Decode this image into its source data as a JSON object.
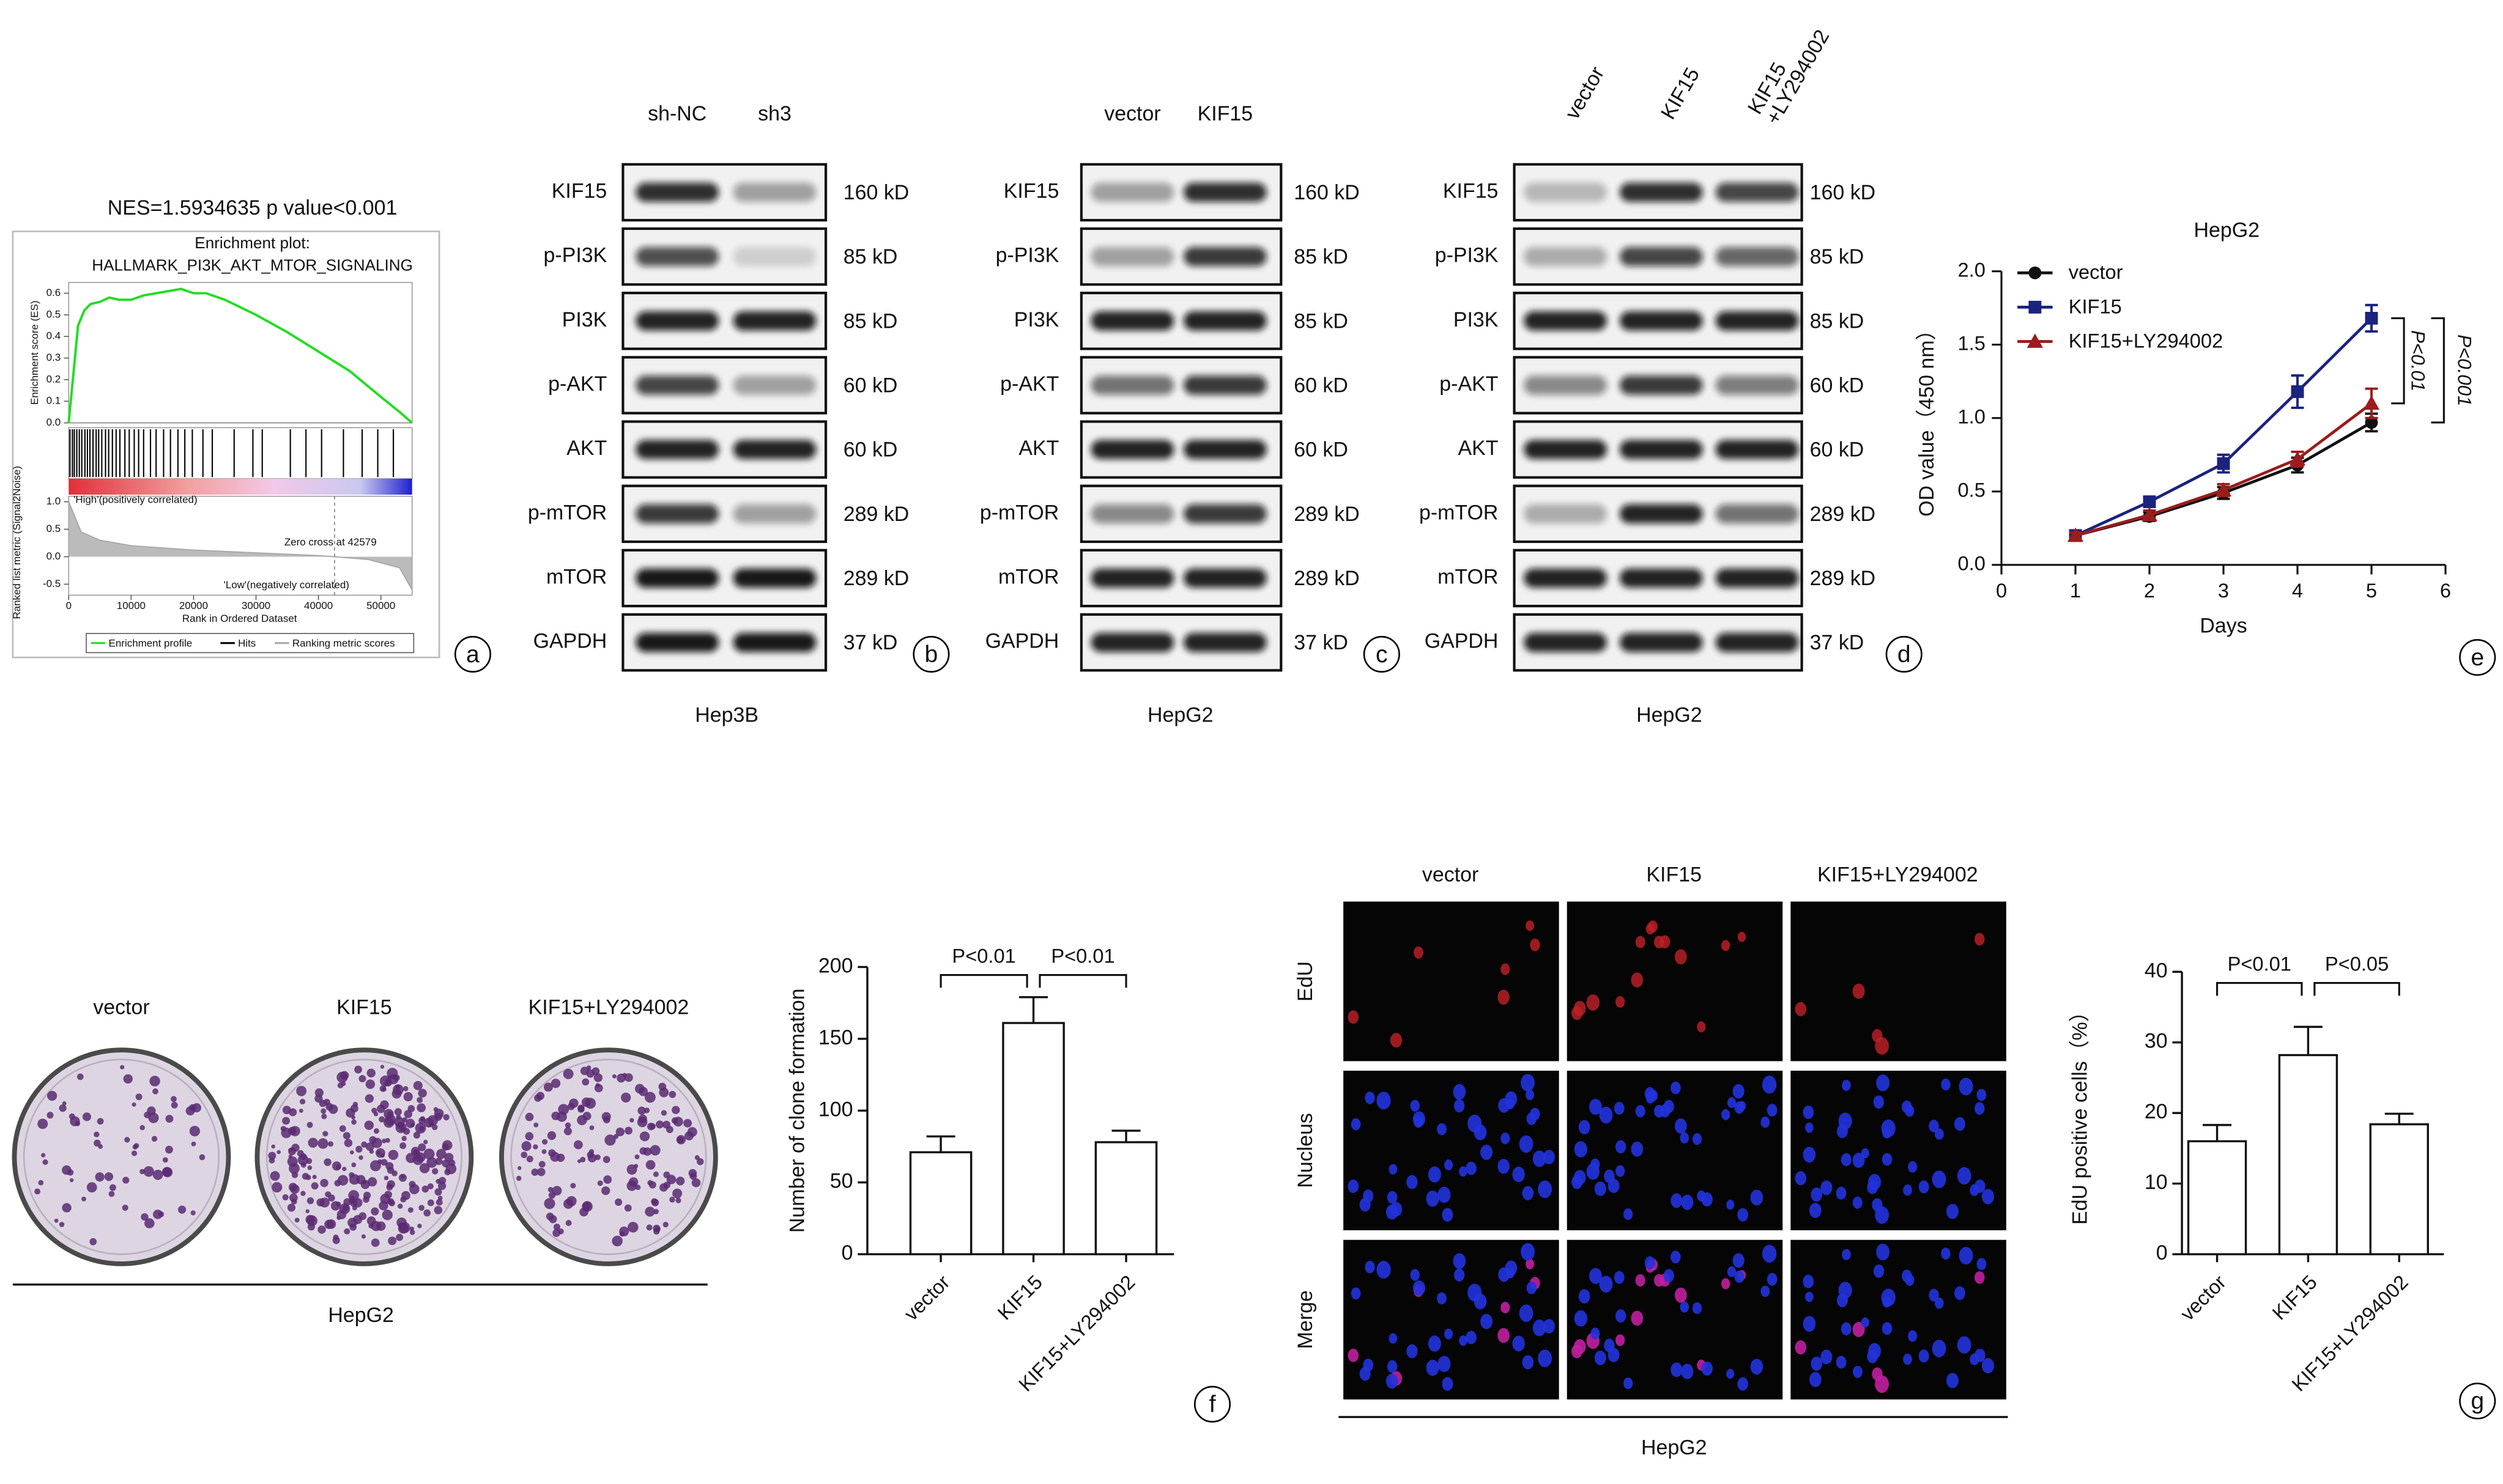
{
  "figure": {
    "panel_labels": [
      "a",
      "b",
      "c",
      "d",
      "e",
      "f",
      "g"
    ]
  },
  "chart_data": [
    {
      "type": "gsea",
      "title": "NES=1.5934635 p value<0.001",
      "subtitle": [
        "Enrichment plot:",
        "HALLMARK_PI3K_AKT_MTOR_SIGNALING"
      ],
      "ylabel": "Enrichment score (ES)",
      "y2label": "Ranked list metric (Signal2Noise)",
      "xlabel": "Rank in Ordered Dataset",
      "xlim": [
        0,
        55000
      ],
      "xticks": [
        0,
        10000,
        20000,
        30000,
        40000,
        50000
      ],
      "ylim": [
        0,
        0.65
      ],
      "yticks": [
        {
          "value": 0,
          "label": "0.0"
        },
        0.1,
        0.2,
        0.3,
        0.4,
        0.5,
        0.6
      ],
      "y2lim": [
        -0.7,
        1.1
      ],
      "y2ticks": [
        {
          "value": 1,
          "label": "1.0"
        },
        0.5,
        {
          "value": 0,
          "label": "0.0"
        },
        -0.5
      ],
      "series": [
        {
          "name": "Enrichment profile",
          "color": "#22dd22",
          "x": [
            0,
            500,
            1000,
            1500,
            2500,
            3500,
            5000,
            6500,
            8000,
            10000,
            12000,
            14000,
            16000,
            18000,
            20000,
            22000,
            25000,
            30000,
            35000,
            40000,
            45000,
            50000,
            53000,
            55000
          ],
          "values": [
            0,
            0.15,
            0.3,
            0.45,
            0.52,
            0.55,
            0.56,
            0.58,
            0.57,
            0.57,
            0.59,
            0.6,
            0.61,
            0.62,
            0.6,
            0.6,
            0.57,
            0.5,
            0.42,
            0.33,
            0.24,
            0.12,
            0.05,
            0
          ]
        },
        {
          "name": "Hits",
          "color": "#000000",
          "x": [
            200,
            600,
            900,
            1300,
            1700,
            2100,
            2600,
            3000,
            3400,
            3900,
            4400,
            4800,
            5300,
            5900,
            6400,
            7000,
            7600,
            8200,
            9000,
            9700,
            10500,
            11200,
            12000,
            13100,
            14000,
            15200,
            16300,
            17500,
            18600,
            19800,
            21500,
            23000,
            26500,
            29500,
            31000,
            35500,
            38000,
            40500,
            44000,
            47000,
            49500,
            52000
          ]
        },
        {
          "name": "Ranking metric scores",
          "color": "#aaaaaa",
          "axis": "y2",
          "x": [
            0,
            2000,
            5000,
            10000,
            20000,
            30000,
            40000,
            42579,
            48000,
            53000,
            55000
          ],
          "values": [
            1,
            0.45,
            0.3,
            0.2,
            0.12,
            0.07,
            0.02,
            0,
            -0.05,
            -0.2,
            -0.6
          ]
        }
      ],
      "annotations": [
        "'High'(positively correlated)",
        "Zero cross at 42579",
        "'Low'(negatively correlated)"
      ],
      "zero_cross": 42579
    },
    {
      "type": "line",
      "title": "HepG2",
      "xlabel": "Days",
      "ylabel": "OD value（450 nm）",
      "x": [
        1,
        2,
        3,
        4,
        5
      ],
      "xlim": [
        0,
        6
      ],
      "xticks": [
        0,
        1,
        2,
        3,
        4,
        5,
        6
      ],
      "ylim": [
        0,
        2
      ],
      "yticks": [
        {
          "value": 0,
          "label": "0.0"
        },
        0.5,
        {
          "value": 1,
          "label": "1.0"
        },
        1.5,
        {
          "value": 2,
          "label": "2.0"
        }
      ],
      "series": [
        {
          "name": "vector",
          "color": "#111111",
          "values": [
            0.2,
            0.33,
            0.49,
            0.68,
            0.97
          ],
          "errors": [
            0.02,
            0.03,
            0.04,
            0.05,
            0.06
          ]
        },
        {
          "name": "KIF15",
          "color": "#1a237e",
          "values": [
            0.2,
            0.43,
            0.69,
            1.18,
            1.68
          ],
          "errors": [
            0.02,
            0.03,
            0.06,
            0.11,
            0.09
          ]
        },
        {
          "name": "KIF15+LY294002",
          "color": "#9b1c1c",
          "values": [
            0.2,
            0.34,
            0.51,
            0.72,
            1.1
          ],
          "errors": [
            0.02,
            0.03,
            0.04,
            0.05,
            0.1
          ]
        }
      ],
      "annotations": [
        "P<0.01",
        "P<0.001"
      ]
    },
    {
      "type": "bar",
      "ylabel": "Number of clone formation",
      "categories": [
        "vector",
        "KIF15",
        "KIF15+LY294002"
      ],
      "values": [
        71,
        161,
        78
      ],
      "errors": [
        11,
        18,
        8
      ],
      "color": "#ffffff",
      "ylim": [
        0,
        200
      ],
      "yticks": [
        0,
        50,
        100,
        150,
        200
      ],
      "annotations": [
        "P<0.01",
        "P<0.01"
      ]
    },
    {
      "type": "bar",
      "ylabel": "EdU positive cells（%）",
      "categories": [
        "vector",
        "KIF15",
        "KIF15+LY294002"
      ],
      "values": [
        16,
        28.2,
        18.4
      ],
      "errors": [
        2.3,
        4,
        1.5
      ],
      "color": "#ffffff",
      "ylim": [
        0,
        40
      ],
      "yticks": [
        0,
        10,
        20,
        30,
        40
      ],
      "annotations": [
        "P<0.01",
        "P<0.05"
      ]
    }
  ],
  "blots": [
    {
      "lanes": [
        [
          "sh-NC"
        ],
        [
          "sh3"
        ]
      ],
      "proteins": [
        "KIF15",
        "p-PI3K",
        "PI3K",
        "p-AKT",
        "AKT",
        "p-mTOR",
        "mTOR",
        "GAPDH"
      ],
      "sizes": [
        "160 kD",
        "85 kD",
        "85 kD",
        "60 kD",
        "60 kD",
        "289 kD",
        "289 kD",
        "37 kD"
      ],
      "cell": "Hep3B"
    },
    {
      "lanes": [
        [
          "vector"
        ],
        [
          "KIF15"
        ]
      ],
      "proteins": [
        "KIF15",
        "p-PI3K",
        "PI3K",
        "p-AKT",
        "AKT",
        "p-mTOR",
        "mTOR",
        "GAPDH"
      ],
      "sizes": [
        "160 kD",
        "85 kD",
        "85 kD",
        "60 kD",
        "60 kD",
        "289 kD",
        "289 kD",
        "37 kD"
      ],
      "cell": "HepG2"
    },
    {
      "lanes": [
        [
          "vector"
        ],
        [
          "KIF15"
        ],
        [
          "KIF15",
          "+LY294002"
        ]
      ],
      "proteins": [
        "KIF15",
        "p-PI3K",
        "PI3K",
        "p-AKT",
        "AKT",
        "p-mTOR",
        "mTOR",
        "GAPDH"
      ],
      "sizes": [
        "160 kD",
        "85 kD",
        "85 kD",
        "60 kD",
        "60 kD",
        "289 kD",
        "289 kD",
        "37 kD"
      ],
      "cell": "HepG2"
    }
  ],
  "colony": {
    "groups": [
      "vector",
      "KIF15",
      "KIF15+LY294002"
    ],
    "cell": "HepG2"
  },
  "edu": {
    "columns": [
      "vector",
      "KIF15",
      "KIF15+LY294002"
    ],
    "rows": [
      "EdU",
      "Nucleus",
      "Merge"
    ],
    "cell": "HepG2"
  }
}
